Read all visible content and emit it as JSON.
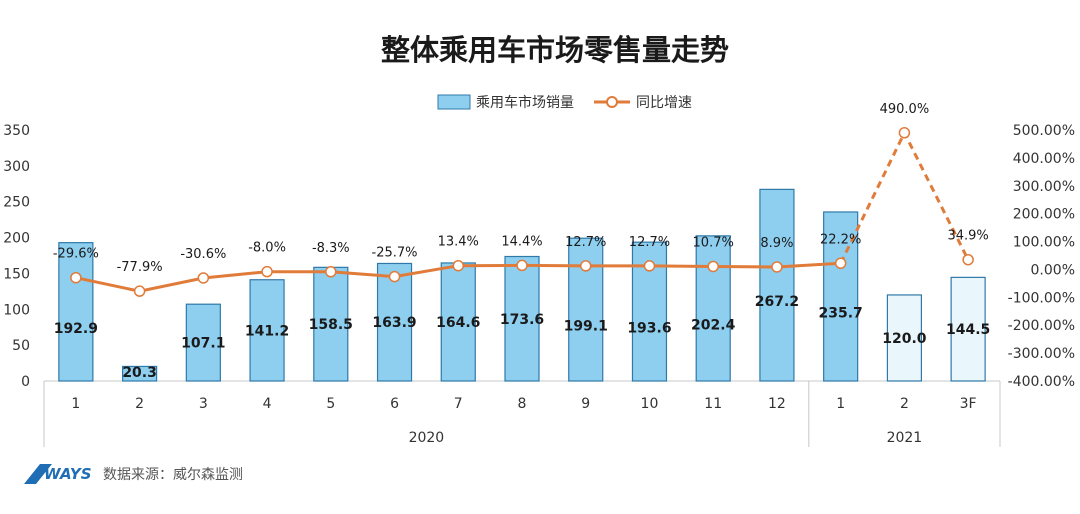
{
  "title": "整体乘用车市场零售量走势",
  "legend": {
    "bar": "乘用车市场销量",
    "line": "同比增速"
  },
  "source": {
    "logo": "WAYS",
    "label": "数据来源：威尔森监测"
  },
  "colors": {
    "bar": "#8ecff0",
    "bar_stroke": "#2f79a8",
    "bar_forecast": "#e9f6fc",
    "line": "#e07b39",
    "marker_fill": "#ffffff"
  },
  "chart_data": {
    "type": "bar+line",
    "x": [
      "1",
      "2",
      "3",
      "4",
      "5",
      "6",
      "7",
      "8",
      "9",
      "10",
      "11",
      "12",
      "1",
      "2",
      "3F"
    ],
    "groups": [
      {
        "label": "2020",
        "count": 12
      },
      {
        "label": "2021",
        "count": 3
      }
    ],
    "series": [
      {
        "name": "乘用车市场销量",
        "type": "bar",
        "axis": "left",
        "values": [
          192.9,
          20.3,
          107.1,
          141.2,
          158.5,
          163.9,
          164.6,
          173.6,
          199.1,
          193.6,
          202.4,
          267.2,
          235.7,
          120.0,
          144.5
        ],
        "labels": [
          "192.9",
          "20.3",
          "107.1",
          "141.2",
          "158.5",
          "163.9",
          "164.6",
          "173.6",
          "199.1",
          "193.6",
          "202.4",
          "267.2",
          "235.7",
          "120.0",
          "144.5"
        ]
      },
      {
        "name": "同比增速",
        "type": "line",
        "axis": "right",
        "values": [
          -29.6,
          -77.9,
          -30.6,
          -8.0,
          -8.3,
          -25.7,
          13.4,
          14.4,
          12.7,
          12.7,
          10.7,
          8.9,
          22.2,
          490.0,
          34.9
        ],
        "labels": [
          "-29.6%",
          "-77.9%",
          "-30.6%",
          "-8.0%",
          "-8.3%",
          "-25.7%",
          "13.4%",
          "14.4%",
          "12.7%",
          "12.7%",
          "10.7%",
          "8.9%",
          "22.2%",
          "490.0%",
          "34.9%"
        ]
      }
    ],
    "forecast_from_index": 13,
    "dashed_line_from_index": 12,
    "y_left": {
      "min": 0,
      "max": 350,
      "ticks": [
        "0",
        "50",
        "100",
        "150",
        "200",
        "250",
        "300",
        "350"
      ]
    },
    "y_right": {
      "min": -400,
      "max": 500,
      "ticks": [
        "-400.00%",
        "-300.00%",
        "-200.00%",
        "-100.00%",
        "0.00%",
        "100.00%",
        "200.00%",
        "300.00%",
        "400.00%",
        "500.00%"
      ]
    },
    "legend_position": "top-center",
    "grid": false
  }
}
